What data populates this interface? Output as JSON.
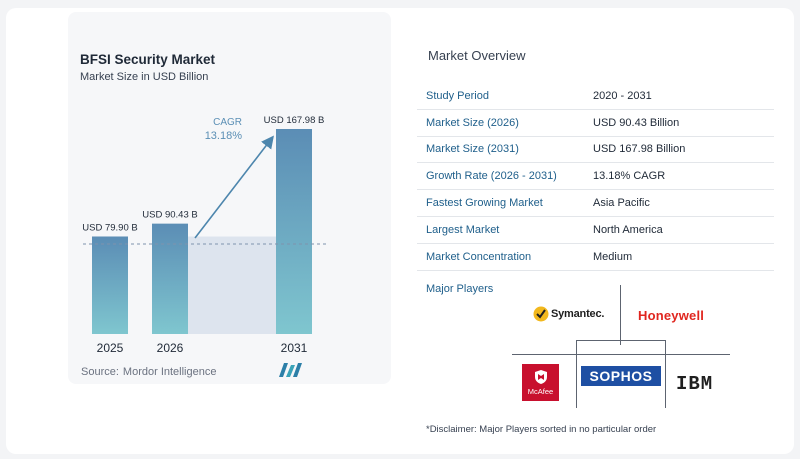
{
  "chart_data": {
    "type": "bar",
    "title": "BFSI Security Market",
    "subtitle": "Market Size in USD Billion",
    "categories": [
      "2025",
      "2026",
      "2031"
    ],
    "values": [
      79.9,
      90.43,
      167.98
    ],
    "value_labels": [
      "USD 79.90 B",
      "USD 90.43 B",
      "USD 167.98 B"
    ],
    "annotation_label": "CAGR",
    "annotation_value": "13.18%",
    "source_label": "Source:",
    "source_value": "Mordor Intelligence",
    "grid": false,
    "colors": {
      "bar_top": "#5b8db5",
      "bar_bottom": "#7fc6cf",
      "highlight_band": "#dde4ee",
      "arrow": "#4d86ad",
      "cagr_text": "#5b8fb5"
    }
  },
  "overview": {
    "title": "Market Overview",
    "rows": [
      {
        "key": "Study Period",
        "value": "2020 - 2031"
      },
      {
        "key": "Market Size (2026)",
        "value": "USD 90.43 Billion"
      },
      {
        "key": "Market Size (2031)",
        "value": "USD 167.98 Billion"
      },
      {
        "key": "Growth Rate (2026 - 2031)",
        "value": "13.18% CAGR"
      },
      {
        "key": "Fastest Growing Market",
        "value": "Asia Pacific"
      },
      {
        "key": "Largest Market",
        "value": "North America"
      },
      {
        "key": "Market Concentration",
        "value": "Medium"
      }
    ]
  },
  "players": {
    "title": "Major Players",
    "logos": {
      "symantec": "Symantec.",
      "honeywell": "Honeywell",
      "mcafee": "McAfee",
      "sophos": "SOPHOS",
      "ibm": "IBM"
    },
    "disclaimer": "*Disclaimer: Major Players sorted in no particular order"
  }
}
